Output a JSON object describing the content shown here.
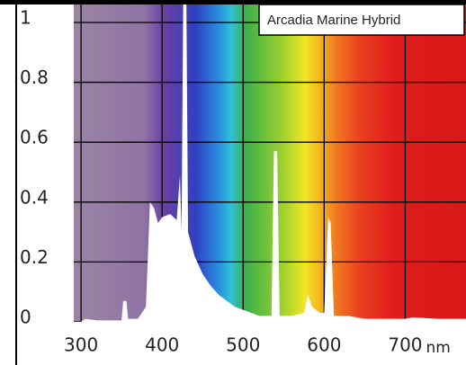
{
  "chart_data": {
    "type": "area",
    "x": [
      300,
      305,
      320,
      350,
      352,
      356,
      358,
      370,
      380,
      385,
      390,
      395,
      400,
      410,
      418,
      422,
      424,
      426,
      430,
      432,
      440,
      450,
      460,
      470,
      480,
      490,
      500,
      510,
      520,
      535,
      538,
      542,
      545,
      560,
      575,
      580,
      585,
      595,
      600,
      605,
      608,
      612,
      630,
      650,
      700,
      710,
      740,
      775
    ],
    "series": [
      {
        "name": "Arcadia Marine Hybrid",
        "color": "#ffffff",
        "values": [
          0,
          0.01,
          0.005,
          0.005,
          0.07,
          0.07,
          0.01,
          0.01,
          0.05,
          0.4,
          0.38,
          0.33,
          0.35,
          0.36,
          0.34,
          0.49,
          0.3,
          1.06,
          1.06,
          0.3,
          0.22,
          0.16,
          0.12,
          0.09,
          0.07,
          0.05,
          0.04,
          0.03,
          0.02,
          0.02,
          0.57,
          0.57,
          0.02,
          0.02,
          0.03,
          0.09,
          0.05,
          0.03,
          0.03,
          0.35,
          0.33,
          0.02,
          0.02,
          0.01,
          0.01,
          0.015,
          0.01,
          0.01
        ]
      }
    ],
    "xlim": [
      291,
      775
    ],
    "ylim": [
      0,
      1.06
    ],
    "xticks": [
      300,
      400,
      500,
      600,
      700
    ],
    "yticks": [
      0,
      0.2,
      0.4,
      0.6,
      0.8,
      1
    ],
    "xlabel": "nm",
    "grid": true
  }
}
